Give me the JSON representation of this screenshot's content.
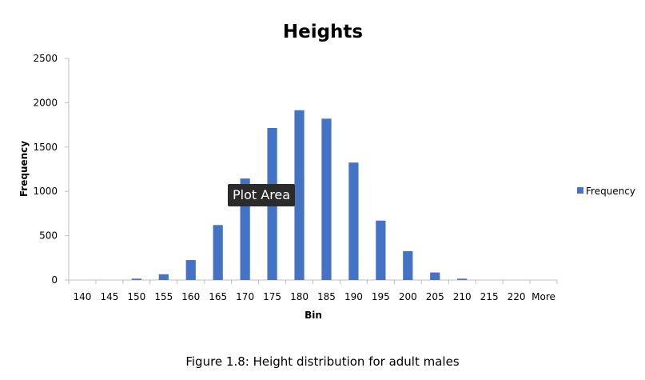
{
  "tooltip": "Plot Area",
  "caption": "Figure 1.8: Height distribution for adult males",
  "chart_data": {
    "type": "bar",
    "title": "Heights",
    "xlabel": "Bin",
    "ylabel": "Frequency",
    "ylim": [
      0,
      2500
    ],
    "yticks": [
      0,
      500,
      1000,
      1500,
      2000,
      2500
    ],
    "categories": [
      "140",
      "145",
      "150",
      "155",
      "160",
      "165",
      "170",
      "175",
      "180",
      "185",
      "190",
      "195",
      "200",
      "205",
      "210",
      "215",
      "220",
      "More"
    ],
    "series": [
      {
        "name": "Frequency",
        "color": "#4472C4",
        "values": [
          0,
          0,
          15,
          65,
          225,
          620,
          1145,
          1715,
          1915,
          1820,
          1325,
          670,
          325,
          85,
          15,
          0,
          0,
          0
        ]
      }
    ],
    "grid": false,
    "legend": "right"
  }
}
